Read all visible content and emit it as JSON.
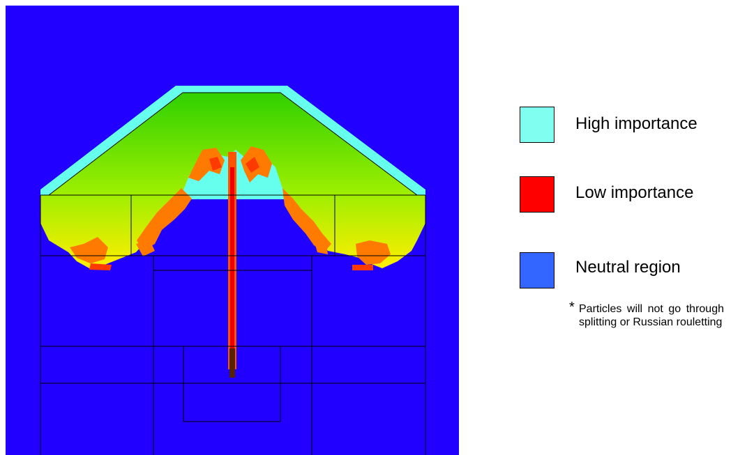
{
  "legend": {
    "items": [
      {
        "label": "High importance",
        "color": "#80fff0"
      },
      {
        "label": "Low importance",
        "color": "#ff0000"
      },
      {
        "label": "Neutral region",
        "color": "#3366ff"
      }
    ],
    "note_marker": "*",
    "note": "Particles will not go through splitting or Russian rouletting"
  }
}
